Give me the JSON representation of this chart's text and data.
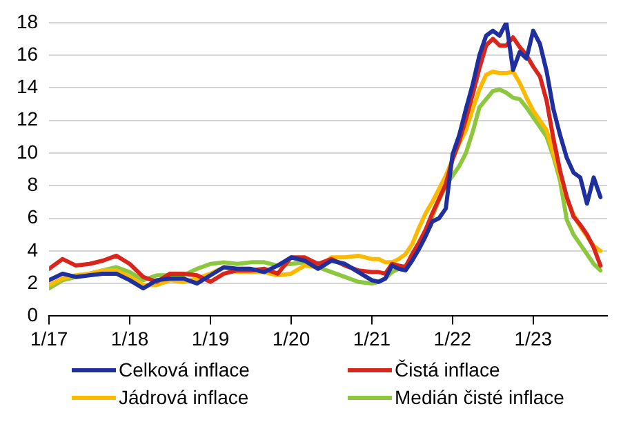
{
  "chart_data": {
    "type": "line",
    "x": [
      "2017-01",
      "2017-03",
      "2017-05",
      "2017-07",
      "2017-09",
      "2017-11",
      "2018-01",
      "2018-03",
      "2018-05",
      "2018-07",
      "2018-09",
      "2018-11",
      "2019-01",
      "2019-03",
      "2019-05",
      "2019-07",
      "2019-09",
      "2019-11",
      "2020-01",
      "2020-03",
      "2020-05",
      "2020-07",
      "2020-09",
      "2020-11",
      "2021-01",
      "2021-02",
      "2021-03",
      "2021-04",
      "2021-05",
      "2021-06",
      "2021-07",
      "2021-08",
      "2021-09",
      "2021-10",
      "2021-11",
      "2021-12",
      "2022-01",
      "2022-02",
      "2022-03",
      "2022-04",
      "2022-05",
      "2022-06",
      "2022-07",
      "2022-08",
      "2022-09",
      "2022-10",
      "2022-11",
      "2022-12",
      "2023-01",
      "2023-02",
      "2023-03",
      "2023-04",
      "2023-05",
      "2023-06",
      "2023-07",
      "2023-08",
      "2023-09",
      "2023-10",
      "2023-11"
    ],
    "series": [
      {
        "name": "Celková inflace",
        "color": "#1f2f9e",
        "values": [
          2.2,
          2.6,
          2.4,
          2.5,
          2.6,
          2.6,
          2.2,
          1.7,
          2.2,
          2.3,
          2.3,
          2.0,
          2.5,
          3.0,
          2.9,
          2.9,
          2.7,
          3.1,
          3.6,
          3.4,
          2.9,
          3.4,
          3.2,
          2.7,
          2.2,
          2.1,
          2.3,
          3.1,
          2.9,
          2.8,
          3.4,
          4.1,
          4.9,
          5.8,
          6.0,
          6.6,
          9.9,
          11.1,
          12.7,
          14.2,
          16.0,
          17.2,
          17.5,
          17.2,
          18.0,
          15.1,
          16.2,
          15.8,
          17.5,
          16.7,
          15.0,
          12.7,
          11.1,
          9.7,
          8.8,
          8.5,
          6.9,
          8.5,
          7.3
        ]
      },
      {
        "name": "Čistá inflace",
        "color": "#d9261c",
        "values": [
          2.9,
          3.5,
          3.1,
          3.2,
          3.4,
          3.7,
          3.2,
          2.4,
          2.1,
          2.6,
          2.6,
          2.5,
          2.1,
          2.6,
          2.8,
          2.8,
          2.9,
          2.6,
          3.6,
          3.6,
          3.2,
          3.5,
          3.1,
          2.8,
          2.7,
          2.7,
          2.6,
          3.2,
          3.1,
          3.0,
          3.8,
          4.5,
          5.3,
          6.3,
          7.2,
          8.1,
          9.6,
          10.7,
          12.1,
          13.6,
          15.2,
          16.6,
          17.0,
          16.6,
          16.6,
          17.1,
          16.5,
          16.0,
          15.3,
          14.7,
          13.2,
          10.9,
          8.9,
          7.3,
          6.1,
          5.6,
          5.0,
          4.2,
          3.1
        ]
      },
      {
        "name": "Jádrová inflace",
        "color": "#fbb900",
        "values": [
          1.9,
          2.3,
          2.5,
          2.6,
          2.8,
          2.8,
          2.4,
          1.9,
          1.9,
          2.2,
          2.1,
          2.3,
          2.6,
          3.0,
          2.7,
          2.7,
          2.7,
          2.5,
          2.6,
          3.1,
          3.0,
          3.6,
          3.6,
          3.7,
          3.5,
          3.5,
          3.3,
          3.3,
          3.5,
          3.8,
          4.4,
          5.4,
          6.3,
          7.0,
          7.8,
          8.6,
          9.6,
          10.6,
          11.4,
          12.7,
          13.9,
          14.8,
          15.0,
          14.9,
          14.9,
          15.0,
          14.3,
          13.4,
          12.6,
          12.0,
          11.4,
          10.0,
          8.6,
          7.2,
          6.2,
          5.5,
          4.9,
          4.3,
          4.0
        ]
      },
      {
        "name": "Medián čisté inflace",
        "color": "#8dc63f",
        "values": [
          1.7,
          2.2,
          2.4,
          2.6,
          2.8,
          3.0,
          2.7,
          2.2,
          2.5,
          2.5,
          2.5,
          2.9,
          3.2,
          3.3,
          3.2,
          3.3,
          3.3,
          3.1,
          3.2,
          3.3,
          3.0,
          2.7,
          2.4,
          2.1,
          2.0,
          2.1,
          2.3,
          2.7,
          2.9,
          3.1,
          3.5,
          4.2,
          5.0,
          6.1,
          7.1,
          8.0,
          8.6,
          9.2,
          10.0,
          11.3,
          12.8,
          13.3,
          13.8,
          13.9,
          13.7,
          13.4,
          13.3,
          12.8,
          12.2,
          11.6,
          11.0,
          9.8,
          8.3,
          5.9,
          5.0,
          4.4,
          3.8,
          3.2,
          2.8
        ]
      }
    ],
    "xlim": [
      "2017-01",
      "2023-12"
    ],
    "xticks": [
      {
        "value": "2017-01",
        "label": "1/17"
      },
      {
        "value": "2018-01",
        "label": "1/18"
      },
      {
        "value": "2019-01",
        "label": "1/19"
      },
      {
        "value": "2020-01",
        "label": "1/20"
      },
      {
        "value": "2021-01",
        "label": "1/21"
      },
      {
        "value": "2022-01",
        "label": "1/22"
      },
      {
        "value": "2023-01",
        "label": "1/23"
      }
    ],
    "ylim": [
      0,
      18
    ],
    "yticks": [
      0,
      2,
      4,
      6,
      8,
      10,
      12,
      14,
      16,
      18
    ],
    "grid": "y",
    "legend": "bottom",
    "marker": "none",
    "line_style": "solid"
  }
}
